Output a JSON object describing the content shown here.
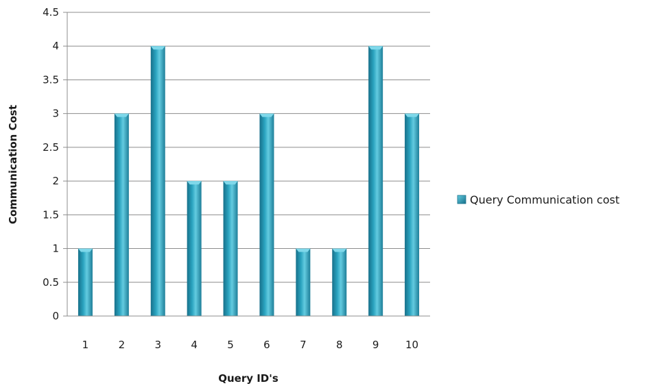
{
  "chart_data": {
    "type": "bar",
    "categories": [
      "1",
      "2",
      "3",
      "4",
      "5",
      "6",
      "7",
      "8",
      "9",
      "10"
    ],
    "series": [
      {
        "name": "Query Communication cost",
        "values": [
          1,
          3,
          4,
          2,
          2,
          3,
          1,
          1,
          4,
          3
        ]
      }
    ],
    "xlabel": "Query ID's",
    "ylabel": "Communication Cost",
    "ylim": [
      0,
      4.5
    ],
    "yticks": [
      "0",
      "0.5",
      "1",
      "1.5",
      "2",
      "2.5",
      "3",
      "3.5",
      "4",
      "4.5"
    ],
    "grid": true,
    "legend_position": "right",
    "colors": {
      "bar": "#2aa3bf",
      "bar_dark": "#17708a",
      "bar_light": "#63cbe0",
      "grid": "#8c8c8c"
    }
  }
}
